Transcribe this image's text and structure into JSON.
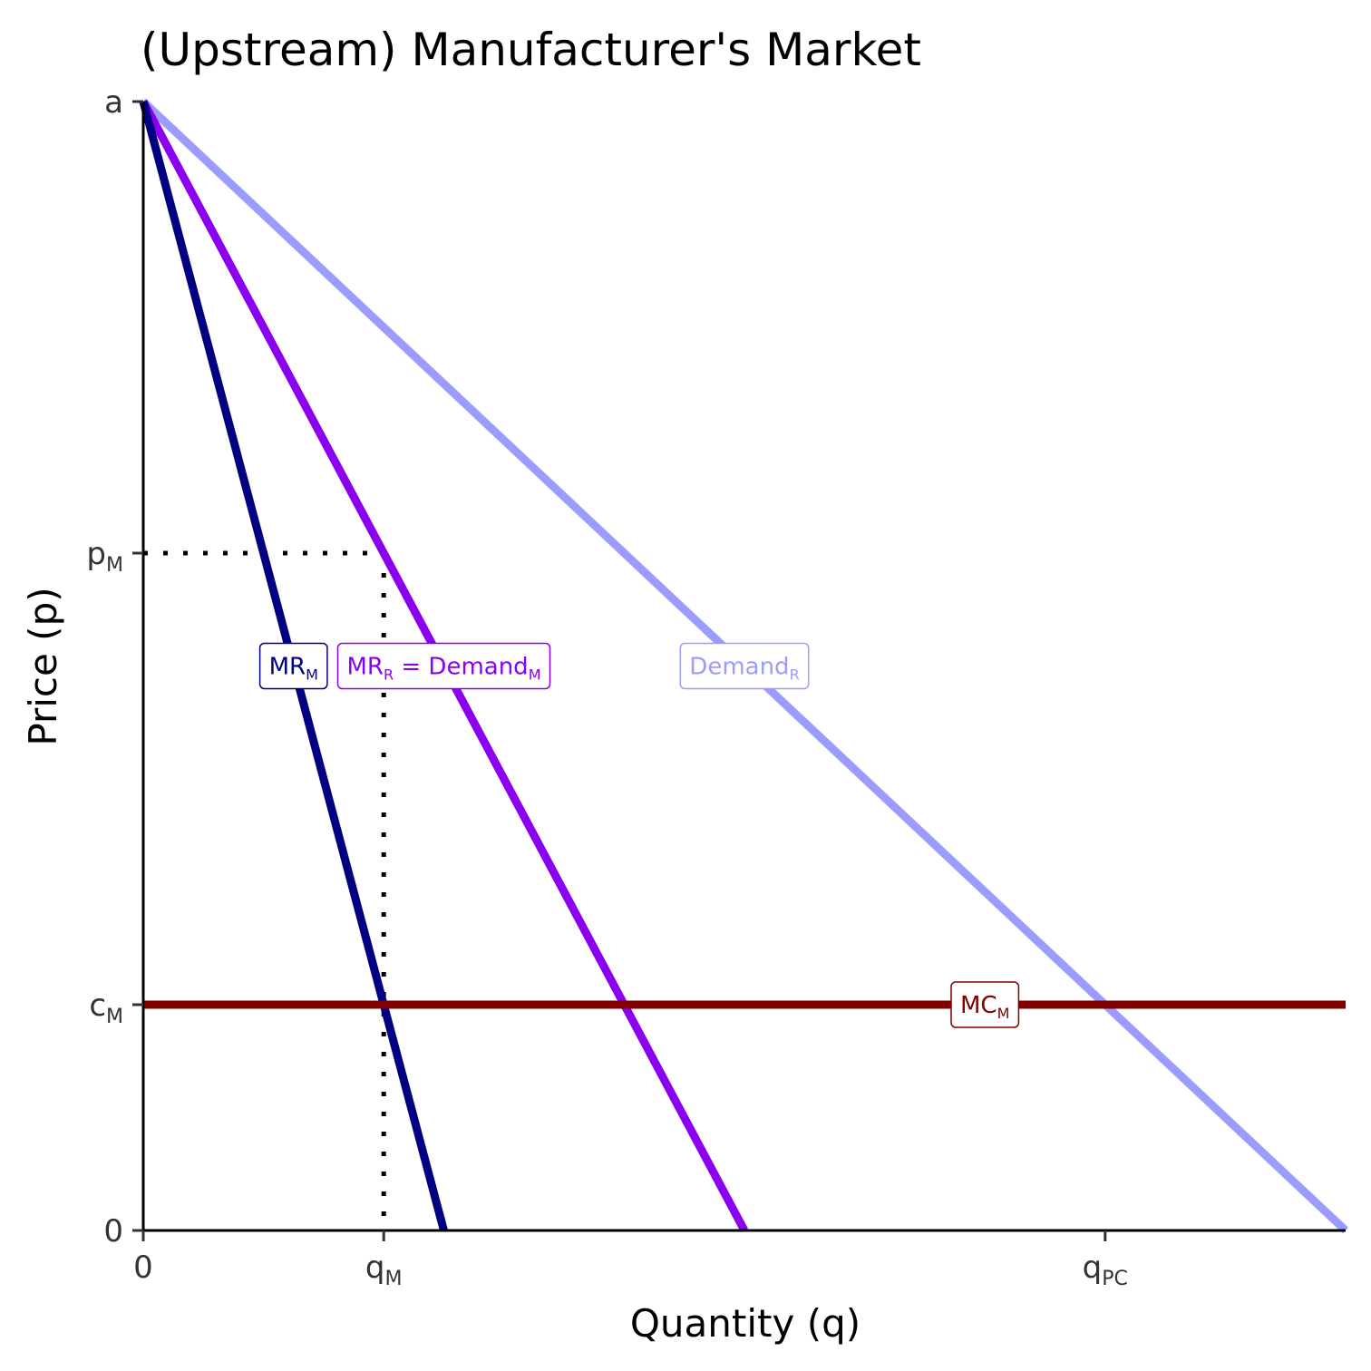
{
  "chart_data": {
    "type": "line",
    "title": "(Upstream) Manufacturer's Market",
    "xlabel": "Quantity (q)",
    "ylabel": "Price (p)",
    "xlim": [
      0,
      10
    ],
    "ylim": [
      0,
      10
    ],
    "grid": false,
    "colors": {
      "mr_m": "#000080",
      "mr_r": "#8b00ee",
      "demand_r": "#9c9cff",
      "mc_m": "#800000"
    },
    "x_ticks": [
      {
        "value": 0,
        "base": "0",
        "sub": ""
      },
      {
        "value": 2,
        "base": "q",
        "sub": "M"
      },
      {
        "value": 8,
        "base": "q",
        "sub": "PC"
      }
    ],
    "y_ticks": [
      {
        "value": 0,
        "base": "0",
        "sub": ""
      },
      {
        "value": 2,
        "base": "c",
        "sub": "M"
      },
      {
        "value": 6,
        "base": "p",
        "sub": "M"
      },
      {
        "value": 10,
        "base": "a",
        "sub": ""
      }
    ],
    "series": [
      {
        "name": "Demand_R",
        "label_base": "Demand",
        "label_sub": "R",
        "color": "#9c9cff",
        "x": [
          0,
          10
        ],
        "y": [
          10,
          0
        ],
        "label_at": [
          5,
          5
        ]
      },
      {
        "name": "MR_R = Demand_M",
        "label_base": "MR",
        "label_sub": "R",
        "label_rest": " = Demand",
        "label_sub2": "M",
        "color": "#8b00ee",
        "x": [
          0,
          5
        ],
        "y": [
          10,
          0
        ],
        "label_at": [
          2.5,
          5
        ]
      },
      {
        "name": "MR_M",
        "label_base": "MR",
        "label_sub": "M",
        "color": "#000080",
        "x": [
          0,
          2.5
        ],
        "y": [
          10,
          0
        ],
        "label_at": [
          1.25,
          5
        ]
      },
      {
        "name": "MC_M",
        "label_base": "MC",
        "label_sub": "M",
        "color": "#800000",
        "x": [
          0,
          10
        ],
        "y": [
          2,
          2
        ],
        "label_at": [
          7,
          2
        ]
      }
    ],
    "guides": [
      {
        "x": [
          0,
          2
        ],
        "y": [
          6,
          6
        ]
      },
      {
        "x": [
          2,
          2
        ],
        "y": [
          6,
          0
        ]
      }
    ]
  }
}
